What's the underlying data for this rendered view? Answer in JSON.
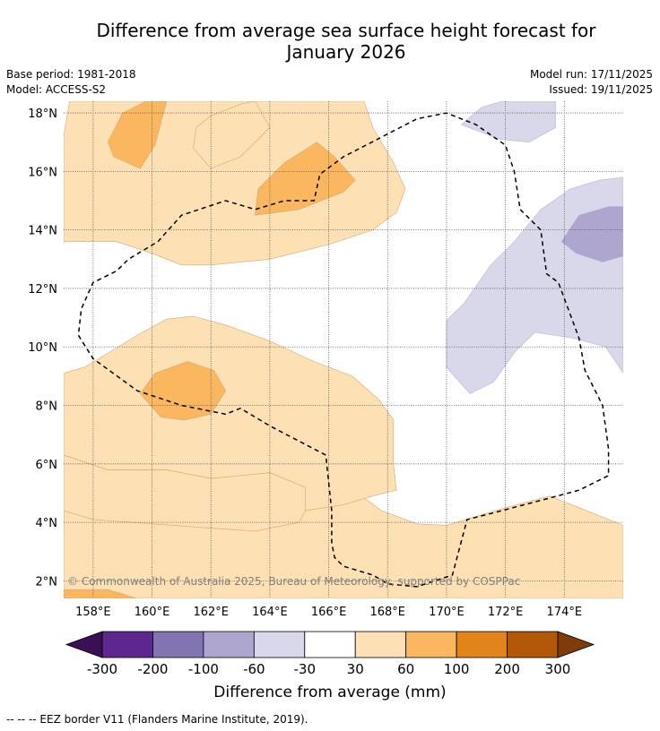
{
  "title_line1": "Difference from average sea surface height forecast for",
  "title_line2": "January 2026",
  "meta_left": [
    "Base period: 1981-2018",
    "Model: ACCESS-S2"
  ],
  "meta_right": [
    "Model run: 17/11/2025",
    "Issued: 19/11/2025"
  ],
  "copyright": "© Commonwealth of Australia 2025, Bureau of Meteorology, supported by COSPPac",
  "footer": "--  --  -- EEZ border V11 (Flanders Marine Institute, 2019).",
  "colors": {
    "c_neg300": "#3b0f54",
    "c_neg200": "#5c288d",
    "c_neg100": "#8473b1",
    "c_neg60": "#afa6cf",
    "c_neg30": "#d8d8ea",
    "c_zero": "#ffffff",
    "c_pos30": "#fde0b4",
    "c_pos60": "#fbb660",
    "c_pos100": "#e3841a",
    "c_pos200": "#b35806",
    "c_pos300": "#7f3b08"
  },
  "chart_data": {
    "type": "heatmap",
    "title": "Difference from average sea surface height forecast for January 2026",
    "xlim": [
      157,
      176
    ],
    "ylim": [
      1.4,
      18.4
    ],
    "xticks": [
      158,
      160,
      162,
      164,
      166,
      168,
      170,
      172,
      174
    ],
    "xtick_labels": [
      "158°E",
      "160°E",
      "162°E",
      "164°E",
      "166°E",
      "168°E",
      "170°E",
      "172°E",
      "174°E"
    ],
    "yticks": [
      2,
      4,
      6,
      8,
      10,
      12,
      14,
      16,
      18
    ],
    "ytick_labels": [
      "2°N",
      "4°N",
      "6°N",
      "8°N",
      "10°N",
      "12°N",
      "14°N",
      "16°N",
      "18°N"
    ],
    "colorbar": {
      "label": "Difference from average (mm)",
      "boundaries": [
        -300,
        -200,
        -100,
        -60,
        -30,
        30,
        60,
        100,
        200,
        300
      ],
      "tick_labels": [
        "-300",
        "-200",
        "-100",
        "-60",
        "-30",
        "30",
        "60",
        "100",
        "200",
        "300"
      ],
      "extend": "both"
    },
    "regions": [
      {
        "name": "low-lat-band",
        "class": "30 to 60",
        "polygon": [
          [
            157,
            1.4
          ],
          [
            176,
            1.4
          ],
          [
            176,
            3.9
          ],
          [
            173.5,
            4.9
          ],
          [
            172,
            4.5
          ],
          [
            170,
            3.9
          ],
          [
            169,
            3.95
          ],
          [
            167.8,
            4.4
          ],
          [
            166.7,
            5.2
          ],
          [
            166.5,
            6.0
          ],
          [
            166.1,
            7.0
          ],
          [
            165,
            7.4
          ],
          [
            163.5,
            7.45
          ],
          [
            162,
            7.4
          ],
          [
            161,
            7.55
          ],
          [
            159,
            7.3
          ],
          [
            157.8,
            6.95
          ],
          [
            157,
            6.5
          ]
        ]
      },
      {
        "name": "low-lat-band-west",
        "class": "30 to 60",
        "polygon": [
          [
            157,
            3.6
          ],
          [
            157,
            4.4
          ],
          [
            158,
            4.1
          ],
          [
            162,
            3.8
          ],
          [
            163.5,
            3.7
          ],
          [
            165,
            4.0
          ],
          [
            165.2,
            4.4
          ],
          [
            165.2,
            5.2
          ],
          [
            164,
            5.7
          ],
          [
            162,
            5.5
          ],
          [
            160.5,
            5.8
          ],
          [
            158.5,
            5.8
          ],
          [
            157,
            6.3
          ]
        ]
      },
      {
        "name": "mid-band",
        "class": "30 to 60",
        "polygon": [
          [
            157,
            9.1
          ],
          [
            157.7,
            9.3
          ],
          [
            159.5,
            10.4
          ],
          [
            160.5,
            10.95
          ],
          [
            161.4,
            11.05
          ],
          [
            162.5,
            10.75
          ],
          [
            164,
            10.2
          ],
          [
            165.5,
            9.5
          ],
          [
            166.8,
            9.0
          ],
          [
            167.7,
            8.2
          ],
          [
            168.2,
            7.5
          ],
          [
            168.2,
            6.0
          ],
          [
            168.3,
            5.1
          ],
          [
            167.5,
            4.9
          ],
          [
            166.5,
            4.6
          ],
          [
            165.2,
            4.4
          ],
          [
            165.2,
            5.2
          ],
          [
            164,
            5.7
          ],
          [
            162,
            5.5
          ],
          [
            160.5,
            5.8
          ],
          [
            158.5,
            5.8
          ],
          [
            157,
            6.3
          ]
        ]
      },
      {
        "name": "north-band",
        "class": "30 to 60",
        "polygon": [
          [
            157,
            13.5
          ],
          [
            157,
            17.2
          ],
          [
            157.2,
            18.4
          ],
          [
            163.5,
            18.4
          ],
          [
            164,
            17.5
          ],
          [
            163,
            16.5
          ],
          [
            162,
            16.1
          ],
          [
            161.4,
            16.8
          ],
          [
            161.5,
            17.5
          ],
          [
            162,
            17.9
          ],
          [
            163,
            18.3
          ],
          [
            163.5,
            18.4
          ],
          [
            167.2,
            18.4
          ],
          [
            167.5,
            17.5
          ],
          [
            168.2,
            16.3
          ],
          [
            168.6,
            15.4
          ],
          [
            168.3,
            14.6
          ],
          [
            167.5,
            14.0
          ],
          [
            166,
            13.5
          ],
          [
            164,
            13.0
          ],
          [
            162,
            12.8
          ],
          [
            161,
            12.8
          ],
          [
            160,
            13.2
          ],
          [
            158.8,
            13.6
          ],
          [
            157,
            13.6
          ]
        ]
      },
      {
        "name": "north-pos60-west",
        "class": "60 to 100",
        "polygon": [
          [
            158.5,
            17.0
          ],
          [
            159,
            18.0
          ],
          [
            159.8,
            18.4
          ],
          [
            160.5,
            18.4
          ],
          [
            160.1,
            16.9
          ],
          [
            159.6,
            16.1
          ],
          [
            158.7,
            16.5
          ]
        ]
      },
      {
        "name": "north-pos60-center",
        "class": "60 to 100",
        "polygon": [
          [
            163.5,
            14.5
          ],
          [
            163.6,
            15.4
          ],
          [
            164.5,
            16.3
          ],
          [
            165.6,
            17.0
          ],
          [
            166.2,
            16.5
          ],
          [
            166.9,
            15.7
          ],
          [
            166.5,
            15.3
          ],
          [
            165.0,
            14.7
          ]
        ]
      },
      {
        "name": "mid-pos60",
        "class": "60 to 100",
        "polygon": [
          [
            159.6,
            8.4
          ],
          [
            160.1,
            9.1
          ],
          [
            161.2,
            9.5
          ],
          [
            162.1,
            9.2
          ],
          [
            162.5,
            8.5
          ],
          [
            162,
            7.7
          ],
          [
            161.1,
            7.5
          ],
          [
            160.3,
            7.6
          ]
        ]
      },
      {
        "name": "sw-pos60",
        "class": "60 to 100",
        "polygon": [
          [
            157,
            1.4
          ],
          [
            159.5,
            1.4
          ],
          [
            158.5,
            1.7
          ],
          [
            157,
            1.7
          ]
        ]
      },
      {
        "name": "east-neg30",
        "class": "-60 to -30",
        "polygon": [
          [
            176,
            15.8
          ],
          [
            175.2,
            15.7
          ],
          [
            174.2,
            15.4
          ],
          [
            173.2,
            14.7
          ],
          [
            172.3,
            13.6
          ],
          [
            171.5,
            12.8
          ],
          [
            170.6,
            11.5
          ],
          [
            170,
            10.9
          ],
          [
            170,
            9.3
          ],
          [
            170.8,
            8.4
          ],
          [
            171.6,
            8.8
          ],
          [
            172.3,
            9.8
          ],
          [
            173.0,
            10.5
          ],
          [
            174.3,
            10.3
          ],
          [
            175.4,
            10.0
          ],
          [
            176,
            9.1
          ]
        ]
      },
      {
        "name": "ne-neg30",
        "class": "-60 to -30",
        "polygon": [
          [
            170.5,
            17.6
          ],
          [
            171.2,
            18.2
          ],
          [
            171.9,
            18.4
          ],
          [
            172.6,
            18.4
          ],
          [
            173.7,
            18.4
          ],
          [
            173.7,
            17.5
          ],
          [
            172.8,
            17.0
          ],
          [
            171.8,
            17.1
          ]
        ]
      },
      {
        "name": "east-neg60",
        "class": "-100 to -60",
        "polygon": [
          [
            173.9,
            13.6
          ],
          [
            174.5,
            14.5
          ],
          [
            175.5,
            14.8
          ],
          [
            176,
            14.8
          ],
          [
            176,
            13.1
          ],
          [
            175.3,
            12.9
          ],
          [
            174.4,
            13.2
          ]
        ]
      }
    ],
    "eez_border": [
      [
        160.2,
        13.6
      ],
      [
        161,
        14.5
      ],
      [
        162.5,
        15.0
      ],
      [
        163.5,
        14.7
      ],
      [
        164.5,
        15.0
      ],
      [
        165.5,
        15.0
      ],
      [
        165.7,
        15.9
      ],
      [
        166.5,
        16.5
      ],
      [
        169,
        17.8
      ],
      [
        170,
        18.0
      ],
      [
        171,
        17.6
      ],
      [
        172,
        16.9
      ],
      [
        172.3,
        16.0
      ],
      [
        172.5,
        14.7
      ],
      [
        173.2,
        14.0
      ],
      [
        173.4,
        12.5
      ],
      [
        173.8,
        12.2
      ],
      [
        174.5,
        10.3
      ],
      [
        174.7,
        9.2
      ],
      [
        175.3,
        8.0
      ],
      [
        175.5,
        6.5
      ],
      [
        175.5,
        5.6
      ],
      [
        174.5,
        5.1
      ],
      [
        173,
        4.7
      ],
      [
        171.5,
        4.3
      ],
      [
        170.7,
        4.1
      ],
      [
        170.2,
        2.2
      ],
      [
        169,
        1.8
      ],
      [
        168,
        1.9
      ],
      [
        167.5,
        2.2
      ],
      [
        166.5,
        2.5
      ],
      [
        166.2,
        2.8
      ],
      [
        166.1,
        3.3
      ],
      [
        166.1,
        4.4
      ],
      [
        165.9,
        6.3
      ],
      [
        164,
        7.3
      ],
      [
        163,
        7.9
      ],
      [
        162.5,
        7.7
      ],
      [
        161,
        8.0
      ],
      [
        159.5,
        8.5
      ],
      [
        158,
        9.6
      ],
      [
        157.5,
        10.4
      ],
      [
        157.6,
        11.3
      ],
      [
        158,
        12.2
      ],
      [
        158.8,
        12.6
      ],
      [
        159.2,
        13.0
      ],
      [
        160.2,
        13.6
      ]
    ]
  }
}
